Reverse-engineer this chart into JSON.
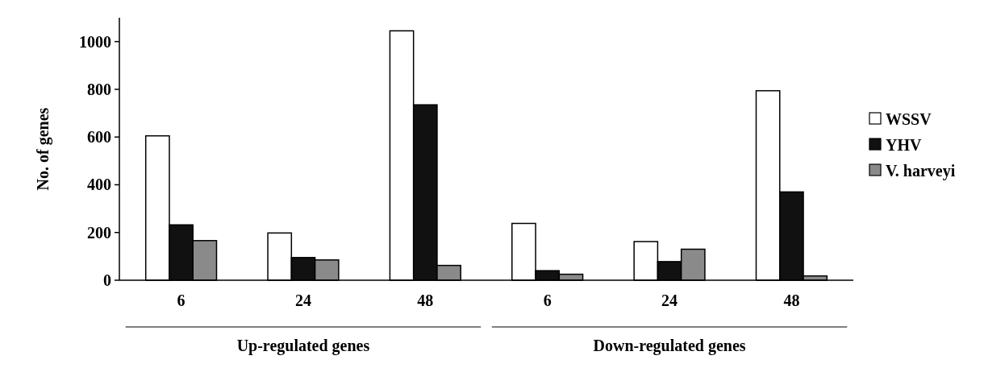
{
  "chart_data": {
    "type": "bar",
    "ylabel": "No. of genes",
    "categories": [
      "6",
      "24",
      "48",
      "6",
      "24",
      "48"
    ],
    "series": [
      {
        "name": "WSSV",
        "color": "#ffffff",
        "values": [
          605,
          198,
          1045,
          238,
          162,
          794
        ]
      },
      {
        "name": "YHV",
        "color": "#111111",
        "values": [
          232,
          95,
          735,
          40,
          78,
          370
        ]
      },
      {
        "name": "V. harveyi",
        "color": "#8a8a8a",
        "values": [
          166,
          85,
          62,
          25,
          130,
          18
        ]
      }
    ],
    "ylim": [
      0,
      1100
    ],
    "yticks": [
      0,
      200,
      400,
      600,
      800,
      1000
    ],
    "annotations": [
      "Up-regulated genes",
      "Down-regulated genes"
    ],
    "legend": "right"
  }
}
